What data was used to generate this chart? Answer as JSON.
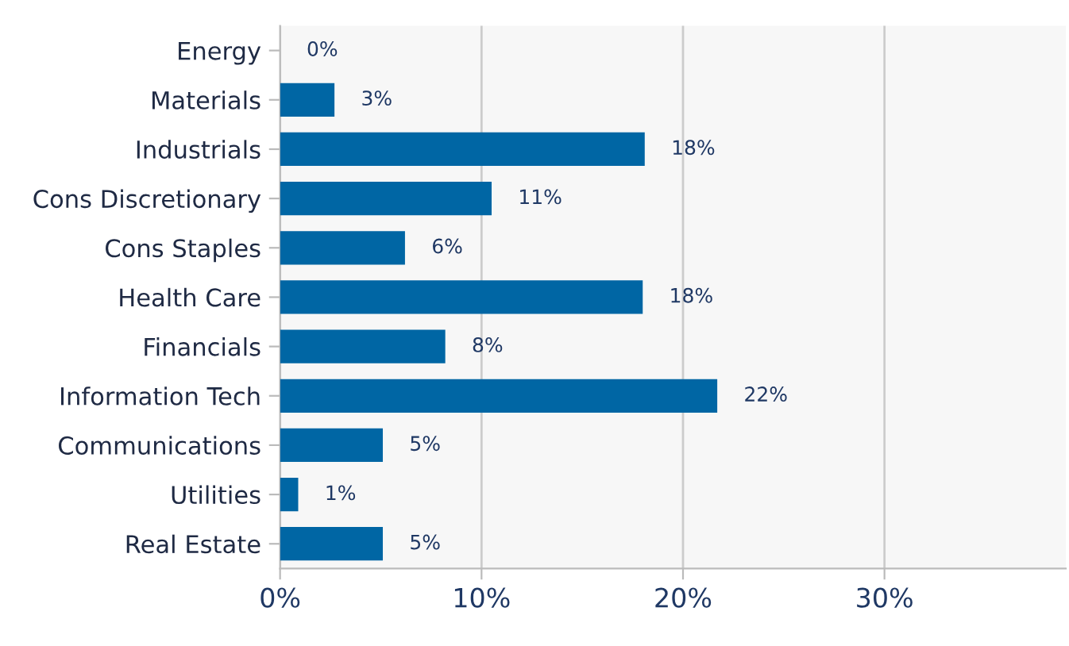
{
  "chart_data": {
    "type": "bar",
    "orientation": "horizontal",
    "categories": [
      "Energy",
      "Materials",
      "Industrials",
      "Cons Discretionary",
      "Cons Staples",
      "Health Care",
      "Financials",
      "Information Tech",
      "Communications",
      "Utilities",
      "Real Estate"
    ],
    "values": [
      0,
      2.7,
      18.1,
      10.5,
      6.2,
      18.0,
      8.2,
      21.7,
      5.1,
      0.9,
      5.1
    ],
    "value_labels": [
      "0%",
      "3%",
      "18%",
      "11%",
      "6%",
      "18%",
      "8%",
      "22%",
      "5%",
      "1%",
      "5%"
    ],
    "color": "#0066a4",
    "xlim": [
      0,
      39
    ],
    "xticks": [
      {
        "value": 0,
        "label": "0%"
      },
      {
        "value": 10,
        "label": "10%"
      },
      {
        "value": 20,
        "label": "20%"
      },
      {
        "value": 30,
        "label": "30%"
      }
    ],
    "grid": "x"
  }
}
